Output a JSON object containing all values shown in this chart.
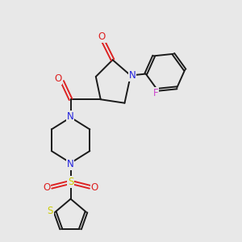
{
  "background_color": "#e8e8e8",
  "bond_color": "#1a1a1a",
  "N_color": "#2222dd",
  "O_color": "#dd2222",
  "F_color": "#cc44cc",
  "S_color": "#cccc00",
  "figsize": [
    3.0,
    3.0
  ],
  "dpi": 100,
  "xlim": [
    0,
    10
  ],
  "ylim": [
    0,
    10
  ]
}
